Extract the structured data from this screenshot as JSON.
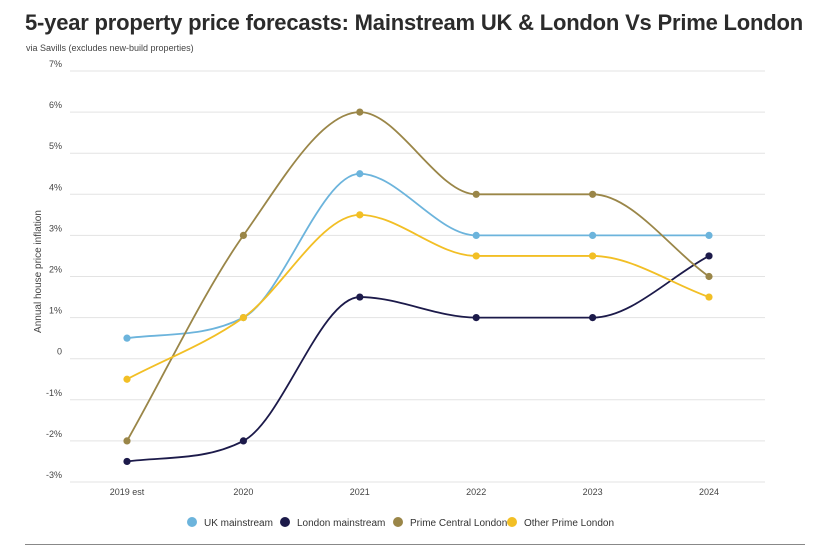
{
  "chart_data": {
    "type": "line",
    "title": "5-year property price forecasts: Mainstream UK & London Vs Prime London",
    "subtitle": "via Savills (excludes new-build properties)",
    "xlabel": "",
    "ylabel": "Annual house price inflation",
    "categories": [
      "2019 est",
      "2020",
      "2021",
      "2022",
      "2023",
      "2024"
    ],
    "ylim": [
      -3,
      7
    ],
    "yticks": [
      -3,
      -2,
      -1,
      0,
      1,
      2,
      3,
      4,
      5,
      6,
      7
    ],
    "ytick_labels": [
      "-3%",
      "-2%",
      "-1%",
      "0",
      "1%",
      "2%",
      "3%",
      "4%",
      "5%",
      "6%",
      "7%"
    ],
    "grid": true,
    "legend_position": "bottom",
    "series": [
      {
        "name": "UK mainstream",
        "color": "#6cb4dc",
        "values": [
          0.5,
          1.0,
          4.5,
          3.0,
          3.0,
          3.0
        ]
      },
      {
        "name": "London mainstream",
        "color": "#1c1a4a",
        "values": [
          -2.5,
          -2.0,
          1.5,
          1.0,
          1.0,
          2.5
        ]
      },
      {
        "name": "Prime Central London",
        "color": "#9a8648",
        "values": [
          -2.0,
          3.0,
          6.0,
          4.0,
          4.0,
          2.0
        ]
      },
      {
        "name": "Other Prime London",
        "color": "#f2bf25",
        "values": [
          -0.5,
          1.0,
          3.5,
          2.5,
          2.5,
          1.5
        ]
      }
    ]
  }
}
